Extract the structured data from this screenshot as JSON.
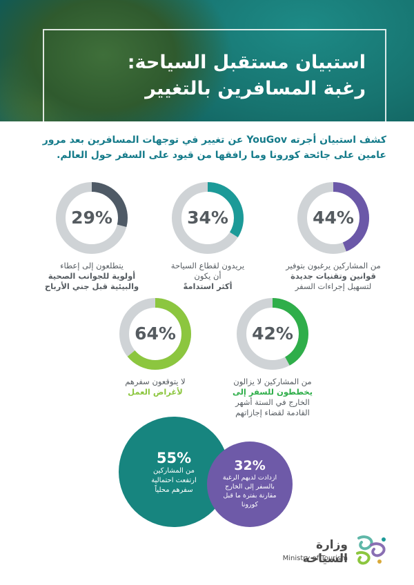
{
  "header": {
    "title_line1": "استبيان مستقبل السياحة:",
    "title_line2": "رغبة المسافرين بالتغيير"
  },
  "intro": {
    "part1": "كشف استبيان أجرته ",
    "brand": "YouGov",
    "part2": " عن تغيير في توجهات المسافرين بعد مرور عامين على جائحة كورونا  وما رافقها من قيود على السفر حول العالم."
  },
  "stats": [
    {
      "value": "44%",
      "fraction": 0.44,
      "color": "#6b58a8",
      "line1": "من المشاركين يرغبون بتوفير",
      "line2": "قوانين وتقنيات جديدة",
      "line3": "لتسهيل إجراءات السفر"
    },
    {
      "value": "34%",
      "fraction": 0.34,
      "color": "#1c9a98",
      "line1": "يريدون لقطاع السياحة",
      "line2": "أن يكون",
      "line3": "أكثر استدامةً"
    },
    {
      "value": "29%",
      "fraction": 0.29,
      "color": "#4f5a66",
      "line1": "يتطلعون إلى إعطاء",
      "line2": "أولوية للجوانب الصحية",
      "line3": "والبيئية قبل جني الأرباح"
    },
    {
      "value": "42%",
      "fraction": 0.42,
      "color": "#2fae4a",
      "line1": "من المشاركين لا يزالون",
      "line2": "يخططون للسفر إلى",
      "line3": "الخارج في الستة أشهر",
      "line4": "القادمة لقضاء إجازاتهم"
    },
    {
      "value": "64%",
      "fraction": 0.64,
      "color": "#8cc63f",
      "line1": "لا يتوقعون سفرهم",
      "line2": "لأغراض العمل"
    }
  ],
  "bubbles": {
    "teal": {
      "value": "55%",
      "color": "#17857f",
      "line1": "من المشاركين",
      "line2": "ارتفعت احتمالية",
      "line3": "سفرهم محلياً"
    },
    "purple": {
      "value": "32%",
      "color": "#6e5aa8",
      "line1": "ازدادت لديهم الرغبة",
      "line2": "بالسفر إلى الخارج",
      "line3": "مقارنة بفترة ما قبل",
      "line4": "كورونا"
    }
  },
  "logo": {
    "arabic": "وزارة السياحة",
    "english": "Ministry of Tourism"
  },
  "icons": {
    "logo_mark": "tourism-ministry-logo-icon"
  }
}
